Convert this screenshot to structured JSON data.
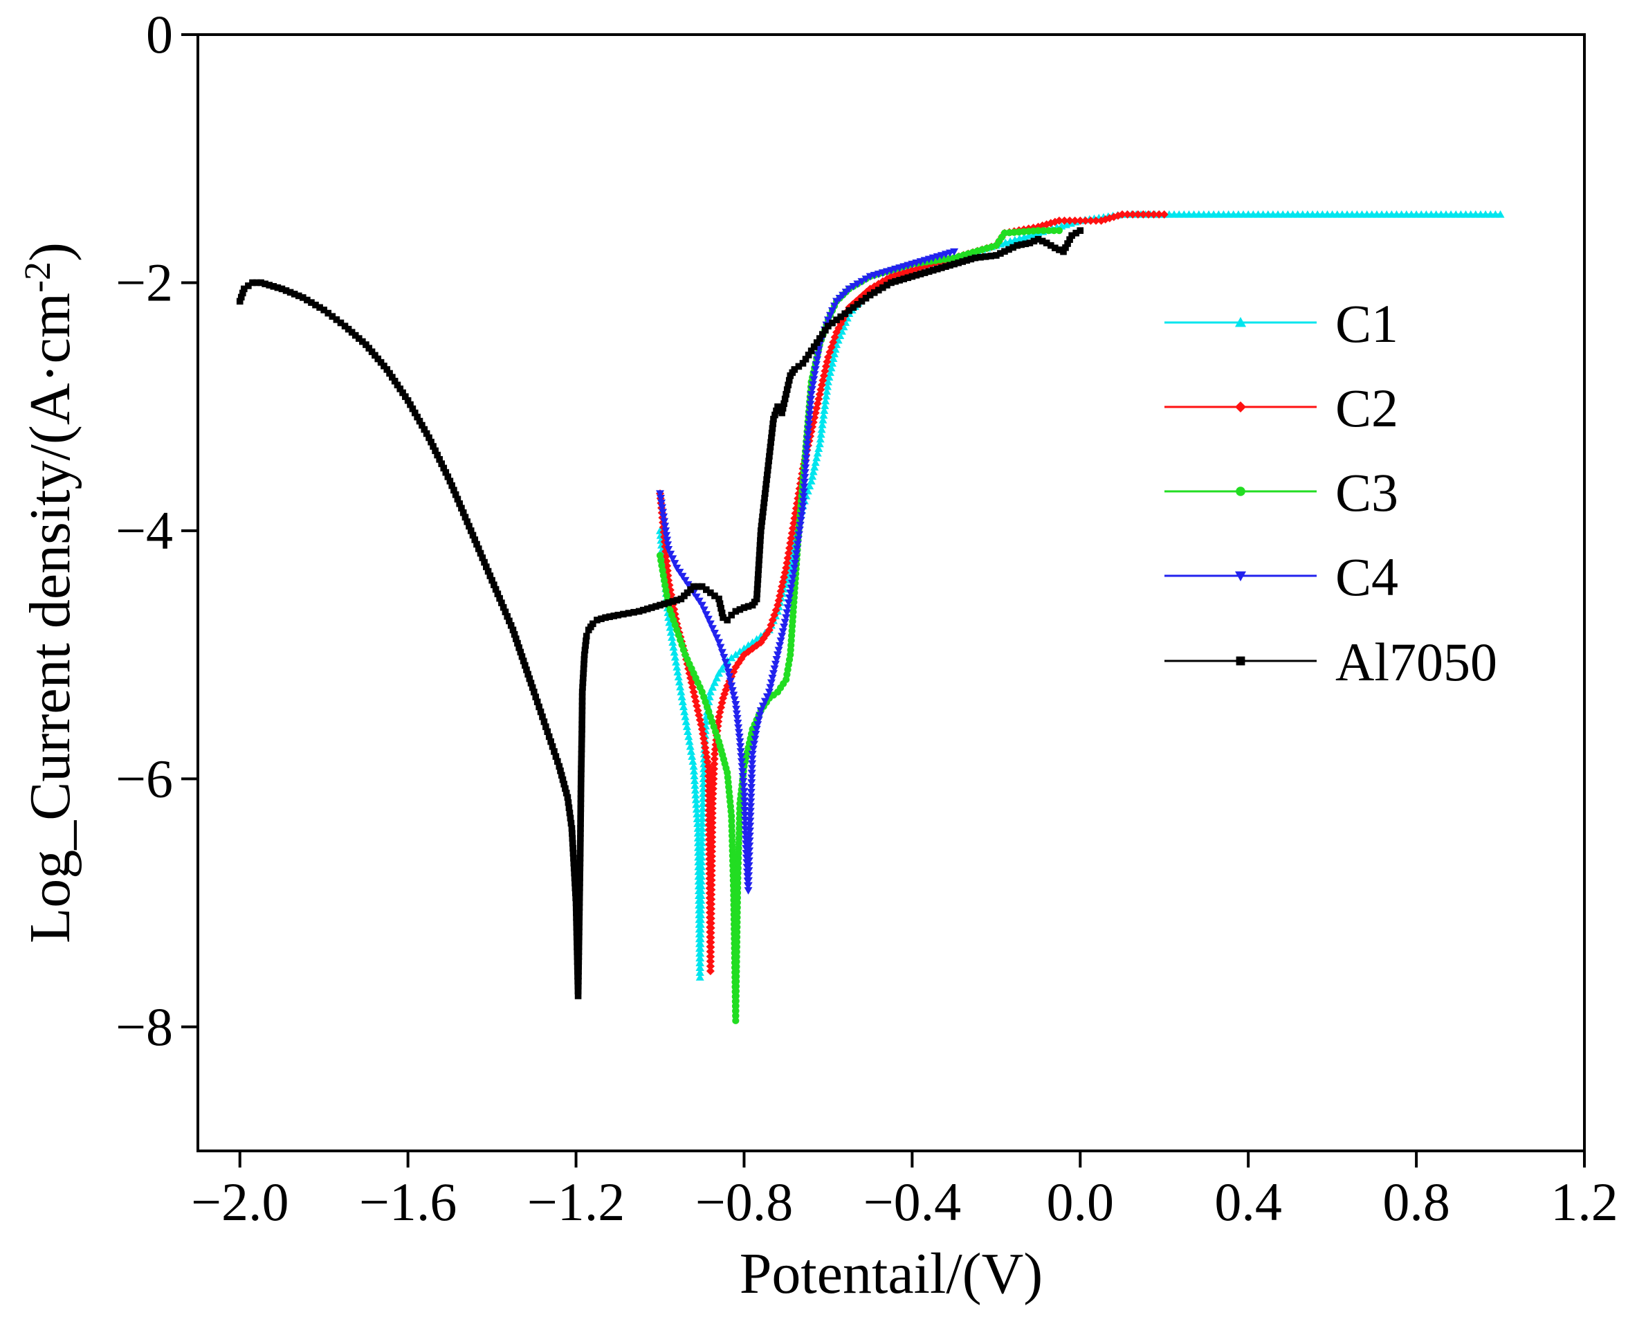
{
  "chart_data": {
    "type": "line",
    "title": "",
    "xlabel": "Potentail/(V)",
    "ylabel": "Log_Current density/(A·cm",
    "ylabel_sup": "-2",
    "ylabel_close": ")",
    "xlim": [
      -2.1,
      1.2
    ],
    "ylim": [
      -9,
      0
    ],
    "xticks": [
      -2.0,
      -1.6,
      -1.2,
      -0.8,
      -0.4,
      0.0,
      0.4,
      0.8,
      1.2
    ],
    "xtick_labels": [
      "−2.0",
      "−1.6",
      "−1.2",
      "−0.8",
      "−0.4",
      "0.0",
      "0.4",
      "0.8",
      "1.2"
    ],
    "yticks": [
      0,
      -2,
      -4,
      -6,
      -8
    ],
    "ytick_labels": [
      "0",
      "−2",
      "−4",
      "−6",
      "−8"
    ],
    "legend_position": "right",
    "grid": false,
    "series": [
      {
        "name": "C1",
        "color": "#00e5ee",
        "marker": "triangle-up",
        "x": [
          -1.0,
          -0.98,
          -0.96,
          -0.94,
          -0.92,
          -0.91,
          -0.905,
          -0.9,
          -0.895,
          -0.89,
          -0.88,
          -0.86,
          -0.84,
          -0.82,
          -0.8,
          -0.78,
          -0.76,
          -0.74,
          -0.72,
          -0.7,
          -0.68,
          -0.66,
          -0.64,
          -0.62,
          -0.6,
          -0.58,
          -0.55,
          -0.5,
          -0.45,
          -0.4,
          -0.3,
          -0.2,
          -0.1,
          0.0,
          0.1,
          0.2,
          0.4,
          0.6,
          0.8,
          1.0
        ],
        "y": [
          -4.0,
          -4.7,
          -5.1,
          -5.5,
          -5.9,
          -6.4,
          -7.6,
          -6.4,
          -5.8,
          -5.5,
          -5.3,
          -5.15,
          -5.05,
          -5.0,
          -4.95,
          -4.9,
          -4.85,
          -4.8,
          -4.65,
          -4.4,
          -4.1,
          -3.8,
          -3.6,
          -3.3,
          -2.8,
          -2.5,
          -2.25,
          -2.05,
          -1.95,
          -1.9,
          -1.8,
          -1.7,
          -1.6,
          -1.5,
          -1.45,
          -1.45,
          -1.45,
          -1.45,
          -1.45,
          -1.45
        ]
      },
      {
        "name": "C2",
        "color": "#ff1111",
        "marker": "diamond",
        "x": [
          -1.0,
          -0.98,
          -0.96,
          -0.94,
          -0.92,
          -0.9,
          -0.885,
          -0.88,
          -0.875,
          -0.87,
          -0.86,
          -0.85,
          -0.84,
          -0.82,
          -0.8,
          -0.78,
          -0.76,
          -0.74,
          -0.72,
          -0.7,
          -0.68,
          -0.66,
          -0.64,
          -0.62,
          -0.6,
          -0.58,
          -0.55,
          -0.5,
          -0.45,
          -0.4,
          -0.3,
          -0.2,
          -0.18,
          -0.1,
          -0.05,
          0.0,
          0.05,
          0.1,
          0.15,
          0.2
        ],
        "y": [
          -3.7,
          -4.4,
          -4.75,
          -5.0,
          -5.3,
          -5.6,
          -5.9,
          -7.55,
          -6.2,
          -5.8,
          -5.5,
          -5.35,
          -5.25,
          -5.1,
          -5.0,
          -4.95,
          -4.9,
          -4.8,
          -4.6,
          -4.3,
          -3.9,
          -3.5,
          -3.2,
          -2.9,
          -2.6,
          -2.4,
          -2.2,
          -2.05,
          -1.95,
          -1.9,
          -1.8,
          -1.7,
          -1.6,
          -1.55,
          -1.5,
          -1.5,
          -1.5,
          -1.45,
          -1.45,
          -1.45
        ]
      },
      {
        "name": "C3",
        "color": "#22dd22",
        "marker": "circle",
        "x": [
          -1.0,
          -0.98,
          -0.96,
          -0.94,
          -0.92,
          -0.9,
          -0.88,
          -0.86,
          -0.84,
          -0.83,
          -0.825,
          -0.82,
          -0.815,
          -0.81,
          -0.8,
          -0.79,
          -0.78,
          -0.76,
          -0.74,
          -0.72,
          -0.7,
          -0.69,
          -0.68,
          -0.67,
          -0.66,
          -0.65,
          -0.64,
          -0.62,
          -0.6,
          -0.58,
          -0.55,
          -0.5,
          -0.45,
          -0.4,
          -0.3,
          -0.2,
          -0.18,
          -0.1,
          -0.05
        ],
        "y": [
          -4.2,
          -4.6,
          -4.8,
          -5.0,
          -5.15,
          -5.3,
          -5.5,
          -5.7,
          -5.95,
          -6.3,
          -6.9,
          -7.95,
          -6.8,
          -6.2,
          -5.9,
          -5.75,
          -5.6,
          -5.45,
          -5.35,
          -5.3,
          -5.2,
          -5.0,
          -4.5,
          -4.0,
          -3.6,
          -3.2,
          -2.8,
          -2.5,
          -2.3,
          -2.15,
          -2.05,
          -1.95,
          -1.9,
          -1.85,
          -1.8,
          -1.7,
          -1.6,
          -1.58,
          -1.58
        ]
      },
      {
        "name": "C4",
        "color": "#2222ee",
        "marker": "triangle-down",
        "x": [
          -1.0,
          -0.98,
          -0.96,
          -0.94,
          -0.92,
          -0.9,
          -0.88,
          -0.86,
          -0.84,
          -0.82,
          -0.81,
          -0.8,
          -0.795,
          -0.79,
          -0.785,
          -0.78,
          -0.77,
          -0.76,
          -0.74,
          -0.72,
          -0.7,
          -0.68,
          -0.66,
          -0.65,
          -0.64,
          -0.62,
          -0.6,
          -0.58,
          -0.55,
          -0.5,
          -0.45,
          -0.4,
          -0.35,
          -0.3
        ],
        "y": [
          -3.7,
          -4.15,
          -4.3,
          -4.4,
          -4.5,
          -4.6,
          -4.75,
          -4.9,
          -5.1,
          -5.4,
          -5.7,
          -6.1,
          -6.6,
          -6.9,
          -6.3,
          -5.8,
          -5.6,
          -5.45,
          -5.3,
          -5.0,
          -4.7,
          -4.3,
          -3.8,
          -3.3,
          -2.9,
          -2.5,
          -2.3,
          -2.15,
          -2.05,
          -1.95,
          -1.9,
          -1.85,
          -1.8,
          -1.75
        ]
      },
      {
        "name": "Al7050",
        "color": "#000000",
        "marker": "square",
        "x": [
          -2.0,
          -1.99,
          -1.97,
          -1.95,
          -1.9,
          -1.85,
          -1.8,
          -1.75,
          -1.7,
          -1.65,
          -1.6,
          -1.55,
          -1.5,
          -1.45,
          -1.4,
          -1.35,
          -1.3,
          -1.28,
          -1.26,
          -1.24,
          -1.22,
          -1.21,
          -1.2,
          -1.195,
          -1.19,
          -1.188,
          -1.186,
          -1.185,
          -1.18,
          -1.175,
          -1.17,
          -1.16,
          -1.15,
          -1.13,
          -1.1,
          -1.05,
          -1.0,
          -0.95,
          -0.92,
          -0.9,
          -0.88,
          -0.86,
          -0.85,
          -0.84,
          -0.83,
          -0.82,
          -0.8,
          -0.78,
          -0.77,
          -0.76,
          -0.75,
          -0.74,
          -0.73,
          -0.72,
          -0.71,
          -0.7,
          -0.69,
          -0.68,
          -0.66,
          -0.64,
          -0.62,
          -0.6,
          -0.58,
          -0.56,
          -0.54,
          -0.52,
          -0.5,
          -0.45,
          -0.4,
          -0.35,
          -0.3,
          -0.25,
          -0.2,
          -0.15,
          -0.12,
          -0.1,
          -0.08,
          -0.06,
          -0.04,
          -0.02,
          0.0
        ],
        "y": [
          -2.15,
          -2.05,
          -2.0,
          -2.0,
          -2.05,
          -2.12,
          -2.22,
          -2.35,
          -2.5,
          -2.7,
          -2.95,
          -3.25,
          -3.6,
          -4.0,
          -4.4,
          -4.8,
          -5.3,
          -5.5,
          -5.7,
          -5.9,
          -6.15,
          -6.4,
          -7.0,
          -7.75,
          -6.6,
          -6.0,
          -5.6,
          -5.3,
          -5.0,
          -4.85,
          -4.8,
          -4.75,
          -4.72,
          -4.7,
          -4.68,
          -4.65,
          -4.6,
          -4.55,
          -4.45,
          -4.45,
          -4.5,
          -4.55,
          -4.7,
          -4.72,
          -4.68,
          -4.65,
          -4.62,
          -4.6,
          -4.55,
          -4.0,
          -3.7,
          -3.4,
          -3.1,
          -3.0,
          -3.05,
          -2.9,
          -2.75,
          -2.7,
          -2.65,
          -2.55,
          -2.45,
          -2.35,
          -2.3,
          -2.25,
          -2.2,
          -2.15,
          -2.1,
          -2.0,
          -1.95,
          -1.9,
          -1.85,
          -1.8,
          -1.78,
          -1.7,
          -1.68,
          -1.65,
          -1.68,
          -1.72,
          -1.75,
          -1.62,
          -1.58
        ]
      }
    ]
  }
}
